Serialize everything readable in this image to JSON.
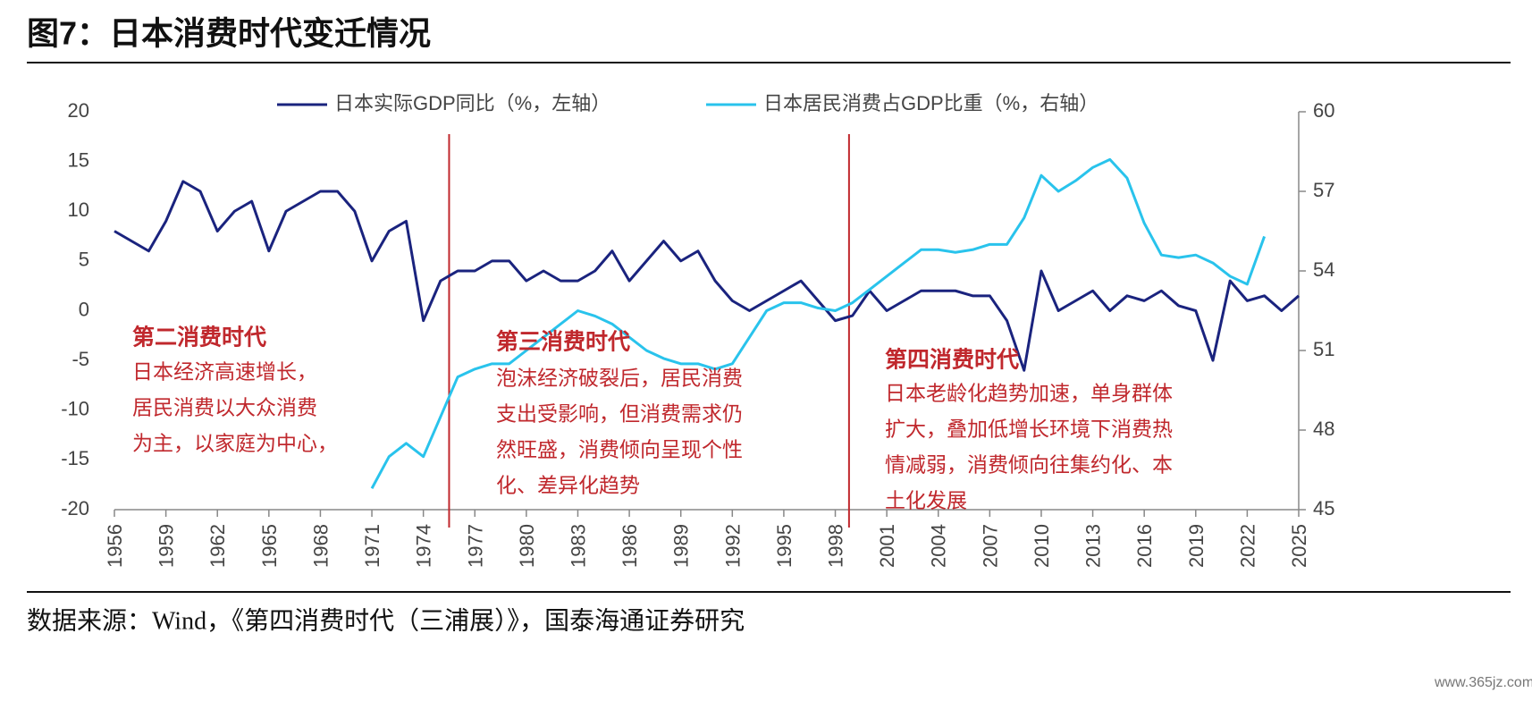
{
  "chart_data": {
    "type": "line",
    "title": "图7：日本消费时代变迁情况",
    "source": "数据来源：Wind，《第四消费时代（三浦展）》，国泰海通证券研究",
    "watermark": "www.365jz.com",
    "x": [
      1956,
      1957,
      1958,
      1959,
      1960,
      1961,
      1962,
      1963,
      1964,
      1965,
      1966,
      1967,
      1968,
      1969,
      1970,
      1971,
      1972,
      1973,
      1974,
      1975,
      1976,
      1977,
      1978,
      1979,
      1980,
      1981,
      1982,
      1983,
      1984,
      1985,
      1986,
      1987,
      1988,
      1989,
      1990,
      1991,
      1992,
      1993,
      1994,
      1995,
      1996,
      1997,
      1998,
      1999,
      2000,
      2001,
      2002,
      2003,
      2004,
      2005,
      2006,
      2007,
      2008,
      2009,
      2010,
      2011,
      2012,
      2013,
      2014,
      2015,
      2016,
      2017,
      2018,
      2019,
      2020,
      2021,
      2022,
      2023,
      2024,
      2025
    ],
    "xlim": [
      1956,
      2025
    ],
    "xticks": [
      1956,
      1959,
      1962,
      1965,
      1968,
      1971,
      1974,
      1977,
      1980,
      1983,
      1986,
      1989,
      1992,
      1995,
      1998,
      2001,
      2004,
      2007,
      2010,
      2013,
      2016,
      2019,
      2022,
      2025
    ],
    "ylim": [
      -20,
      20
    ],
    "yticks": [
      -20,
      -15,
      -10,
      -5,
      0,
      5,
      10,
      15,
      20
    ],
    "y2lim": [
      45,
      60
    ],
    "y2ticks": [
      45,
      48,
      51,
      54,
      57,
      60
    ],
    "series": [
      {
        "name": "日本实际GDP同比（%，左轴）",
        "color": "#1a237e",
        "axis": "y",
        "values": [
          8,
          7,
          6,
          9,
          13,
          12,
          8,
          10,
          11,
          6,
          10,
          11,
          12,
          12,
          10,
          5,
          8,
          9,
          -1,
          3,
          4,
          4,
          5,
          5,
          3,
          4,
          3,
          3,
          4,
          6,
          3,
          5,
          7,
          5,
          6,
          3,
          1,
          0,
          1,
          2,
          3,
          1,
          -1,
          -0.5,
          2,
          0,
          1,
          2,
          2,
          2,
          1.5,
          1.5,
          -1,
          -6,
          4,
          0,
          1,
          2,
          0,
          1.5,
          1,
          2,
          0.5,
          0,
          -5,
          3,
          1,
          1.5,
          0,
          1.5
        ]
      },
      {
        "name": "日本居民消费占GDP比重（%，右轴）",
        "color": "#29c3ec",
        "axis": "y2",
        "values": [
          null,
          null,
          null,
          null,
          null,
          null,
          null,
          null,
          null,
          null,
          null,
          null,
          null,
          null,
          null,
          45.8,
          47,
          47.5,
          47,
          48.5,
          50,
          50.3,
          50.5,
          50.5,
          51,
          51.5,
          52,
          52.5,
          52.3,
          52,
          51.5,
          51,
          50.7,
          50.5,
          50.5,
          50.3,
          50.5,
          51.5,
          52.5,
          52.8,
          52.8,
          52.6,
          52.5,
          52.8,
          53.3,
          53.8,
          54.3,
          54.8,
          54.8,
          54.7,
          54.8,
          55,
          55,
          56,
          57.6,
          57,
          57.4,
          57.9,
          58.2,
          57.5,
          55.8,
          54.6,
          54.5,
          54.6,
          54.3,
          53.8,
          53.5,
          55.3,
          null,
          null
        ]
      }
    ],
    "vlines": [
      1975.5,
      1998.8
    ],
    "vline_color": "#c0282d",
    "annotations": [
      {
        "title": "第二消费时代",
        "lines": [
          "日本经济高速增长，",
          "居民消费以大众消费",
          "为主，以家庭为中心，"
        ]
      },
      {
        "title": "第三消费时代",
        "lines": [
          "泡沫经济破裂后，居民消费",
          "支出受影响，但消费需求仍",
          "然旺盛，消费倾向呈现个性",
          "化、差异化趋势"
        ]
      },
      {
        "title": "第四消费时代",
        "lines": [
          "日本老龄化趋势加速，单身群体",
          "扩大，叠加低增长环境下消费热",
          "情减弱，消费倾向往集约化、本",
          "土化发展"
        ]
      }
    ]
  }
}
